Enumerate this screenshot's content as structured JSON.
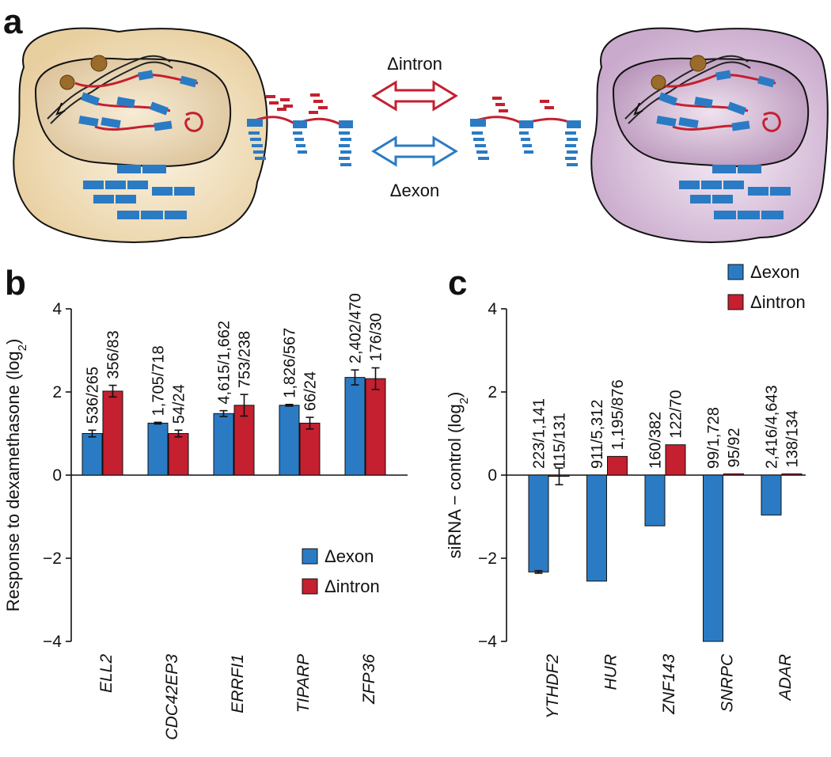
{
  "panels": {
    "a": {
      "letter": "a",
      "arrow_labels": {
        "intron": "Δintron",
        "exon": "Δexon"
      },
      "colors": {
        "exon": "#2a7bc4",
        "intron": "#c4202f",
        "cell_left": "#f0dcb5",
        "cell_right": "#dcc3de"
      }
    }
  },
  "chart_data": [
    {
      "panel": "b",
      "type": "bar",
      "letter": "b",
      "ylabel": "Response to dexamethasone (log2)",
      "ylabel_main": "Response to dexamethasone (log",
      "ylabel_sub": "2",
      "ylabel_end": ")",
      "ylim": [
        -4,
        4
      ],
      "yticks": [
        "4",
        "2",
        "0",
        "−2",
        "−4"
      ],
      "ytick_values": [
        4,
        2,
        0,
        -2,
        -4
      ],
      "categories": [
        "ELL2",
        "CDC42EP3",
        "ERRFI1",
        "TIPARP",
        "ZFP36"
      ],
      "series": [
        {
          "name": "Δexon",
          "color": "#2a7bc4",
          "values": [
            1.0,
            1.25,
            1.48,
            1.68,
            2.35
          ],
          "errors": [
            0.08,
            0.02,
            0.07,
            0.02,
            0.18
          ],
          "labels": [
            "536/265",
            "1,705/718",
            "4,615/1,662",
            "1,826/567",
            "2,402/470"
          ]
        },
        {
          "name": "Δintron",
          "color": "#c4202f",
          "values": [
            2.02,
            1.0,
            1.68,
            1.25,
            2.32
          ],
          "errors": [
            0.14,
            0.08,
            0.26,
            0.14,
            0.26
          ],
          "labels": [
            "356/83",
            "54/24",
            "753/238",
            "66/24",
            "176/30"
          ]
        }
      ],
      "legend": "lower-right",
      "grid": false
    },
    {
      "panel": "c",
      "type": "bar",
      "letter": "c",
      "ylabel": "siRNA − control (log2)",
      "ylabel_main": "siRNA − control (log",
      "ylabel_sub": "2",
      "ylabel_end": ")",
      "ylim": [
        -4,
        4
      ],
      "yticks": [
        "4",
        "2",
        "0",
        "−2",
        "−4"
      ],
      "ytick_values": [
        4,
        2,
        0,
        -2,
        -4
      ],
      "categories": [
        "YTHDF2",
        "HUR",
        "ZNF143",
        "SNRPC",
        "ADAR"
      ],
      "series": [
        {
          "name": "Δexon",
          "color": "#2a7bc4",
          "values": [
            -2.33,
            -2.55,
            -1.22,
            -4.0,
            -0.96
          ],
          "errors": [
            0.03,
            0,
            0,
            0,
            0
          ],
          "labels": [
            "223/1,141",
            "911/5,312",
            "160/382",
            "99/1,728",
            "2,416/4,643"
          ]
        },
        {
          "name": "Δintron",
          "color": "#c4202f",
          "values": [
            -0.03,
            0.45,
            0.73,
            0.03,
            0.03
          ],
          "errors": [
            0.2,
            0,
            0,
            0,
            0
          ],
          "labels": [
            "115/131",
            "1,195/876",
            "122/70",
            "95/92",
            "138/134"
          ]
        }
      ],
      "legend": "top-right",
      "grid": false
    }
  ]
}
